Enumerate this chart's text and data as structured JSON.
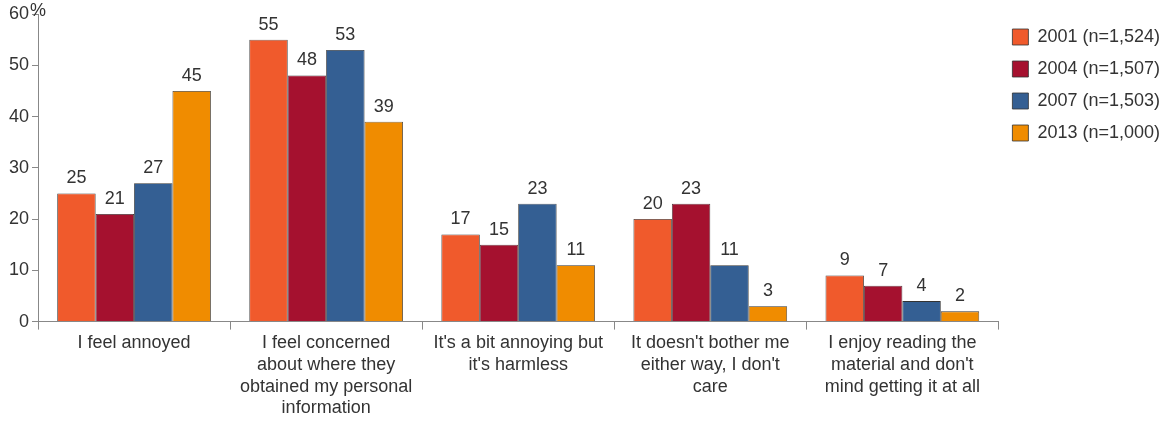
{
  "chart_data": {
    "type": "bar",
    "ylabel": "%",
    "categories": [
      "I feel annoyed",
      "I feel concerned about where they obtained my personal information",
      "It's a bit annoying but it's harmless",
      "It doesn't bother me either way, I don't care",
      "I enjoy reading the material and don't mind getting it at all"
    ],
    "series": [
      {
        "name": "2001 (n=1,524)",
        "color": "#f05a2c",
        "values": [
          25,
          55,
          17,
          20,
          9
        ]
      },
      {
        "name": "2004 (n=1,507)",
        "color": "#a5112f",
        "values": [
          21,
          48,
          15,
          23,
          7
        ]
      },
      {
        "name": "2007 (n=1,503)",
        "color": "#345f93",
        "values": [
          27,
          53,
          23,
          11,
          4
        ]
      },
      {
        "name": "2013 (n=1,000)",
        "color": "#f08c00",
        "values": [
          45,
          39,
          11,
          3,
          2
        ]
      }
    ],
    "ylim": [
      0,
      60
    ],
    "yticks": [
      0,
      10,
      20,
      30,
      40,
      50,
      60
    ],
    "grid": false,
    "legend": "top right",
    "data_labels": true
  }
}
